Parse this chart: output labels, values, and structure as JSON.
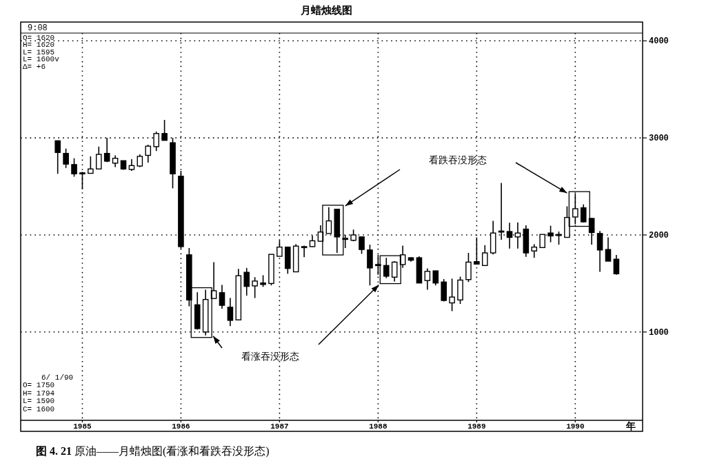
{
  "chart_data": {
    "type": "candlestick",
    "title": "月蜡烛线图",
    "xlabel": "年",
    "x": [
      "1984-10",
      "1984-11",
      "1984-12",
      "1985-01",
      "1985-02",
      "1985-03",
      "1985-04",
      "1985-05",
      "1985-06",
      "1985-07",
      "1985-08",
      "1985-09",
      "1985-10",
      "1985-11",
      "1985-12",
      "1986-01",
      "1986-02",
      "1986-03",
      "1986-04",
      "1986-05",
      "1986-06",
      "1986-07",
      "1986-08",
      "1986-09",
      "1986-10",
      "1986-11",
      "1986-12",
      "1987-01",
      "1987-02",
      "1987-03",
      "1987-04",
      "1987-05",
      "1987-06",
      "1987-07",
      "1987-08",
      "1987-09",
      "1987-10",
      "1987-11",
      "1987-12",
      "1988-01",
      "1988-02",
      "1988-03",
      "1988-04",
      "1988-05",
      "1988-06",
      "1988-07",
      "1988-08",
      "1988-09",
      "1988-10",
      "1988-11",
      "1988-12",
      "1989-01",
      "1989-02",
      "1989-03",
      "1989-04",
      "1989-05",
      "1989-06",
      "1989-07",
      "1989-08",
      "1989-09",
      "1989-10",
      "1989-11",
      "1989-12",
      "1990-01",
      "1990-02",
      "1990-03",
      "1990-04",
      "1990-05",
      "1990-06"
    ],
    "ohlc": [
      [
        2970,
        2975,
        2630,
        2850
      ],
      [
        2840,
        2890,
        2690,
        2730
      ],
      [
        2725,
        2790,
        2600,
        2630
      ],
      [
        2640,
        2650,
        2470,
        2635
      ],
      [
        2635,
        2810,
        2635,
        2680
      ],
      [
        2680,
        2910,
        2680,
        2830
      ],
      [
        2840,
        3000,
        2750,
        2760
      ],
      [
        2740,
        2820,
        2700,
        2790
      ],
      [
        2765,
        2765,
        2670,
        2680
      ],
      [
        2675,
        2780,
        2660,
        2715
      ],
      [
        2710,
        2830,
        2700,
        2810
      ],
      [
        2820,
        2930,
        2745,
        2915
      ],
      [
        2910,
        3065,
        2865,
        3045
      ],
      [
        3045,
        3185,
        2975,
        2975
      ],
      [
        2950,
        3000,
        2480,
        2630
      ],
      [
        2605,
        2660,
        1860,
        1880
      ],
      [
        1795,
        1865,
        1265,
        1330
      ],
      [
        1280,
        1410,
        1025,
        1035
      ],
      [
        1000,
        1435,
        965,
        1335
      ],
      [
        1345,
        1720,
        1345,
        1425
      ],
      [
        1405,
        1485,
        1240,
        1275
      ],
      [
        1255,
        1350,
        1060,
        1120
      ],
      [
        1125,
        1650,
        1125,
        1580
      ],
      [
        1615,
        1660,
        1375,
        1470
      ],
      [
        1475,
        1565,
        1350,
        1525
      ],
      [
        1505,
        1585,
        1465,
        1490
      ],
      [
        1500,
        1800,
        1480,
        1800
      ],
      [
        1780,
        1945,
        1780,
        1875
      ],
      [
        1875,
        1875,
        1600,
        1655
      ],
      [
        1620,
        1905,
        1620,
        1885
      ],
      [
        1870,
        1890,
        1770,
        1880
      ],
      [
        1880,
        1995,
        1875,
        1940
      ],
      [
        1935,
        2100,
        1935,
        2030
      ],
      [
        2015,
        2285,
        2015,
        2145
      ],
      [
        2265,
        2265,
        1815,
        1980
      ],
      [
        1960,
        2000,
        1865,
        1965
      ],
      [
        1945,
        2055,
        1935,
        2000
      ],
      [
        1980,
        1980,
        1805,
        1850
      ],
      [
        1845,
        1900,
        1480,
        1660
      ],
      [
        1695,
        1795,
        1590,
        1690
      ],
      [
        1685,
        1765,
        1555,
        1575
      ],
      [
        1565,
        1730,
        1520,
        1720
      ],
      [
        1695,
        1890,
        1660,
        1795
      ],
      [
        1765,
        1770,
        1725,
        1740
      ],
      [
        1765,
        1780,
        1505,
        1505
      ],
      [
        1530,
        1655,
        1435,
        1625
      ],
      [
        1630,
        1630,
        1480,
        1505
      ],
      [
        1515,
        1545,
        1315,
        1325
      ],
      [
        1300,
        1550,
        1215,
        1360
      ],
      [
        1330,
        1570,
        1290,
        1535
      ],
      [
        1540,
        1815,
        1515,
        1720
      ],
      [
        1725,
        1975,
        1700,
        1700
      ],
      [
        1685,
        1895,
        1685,
        1815
      ],
      [
        1815,
        2145,
        1800,
        2020
      ],
      [
        2030,
        2535,
        1950,
        2040
      ],
      [
        2035,
        2125,
        1860,
        1975
      ],
      [
        1980,
        2130,
        1860,
        2020
      ],
      [
        2060,
        2100,
        1775,
        1815
      ],
      [
        1835,
        1905,
        1765,
        1875
      ],
      [
        1870,
        2005,
        1870,
        2005
      ],
      [
        2020,
        2095,
        1925,
        1990
      ],
      [
        2005,
        2035,
        1900,
        1995
      ],
      [
        1975,
        2295,
        1975,
        2180
      ],
      [
        2185,
        2425,
        2110,
        2270
      ],
      [
        2280,
        2315,
        2130,
        2135
      ],
      [
        2170,
        2175,
        1900,
        2025
      ],
      [
        2015,
        2040,
        1620,
        1845
      ],
      [
        1850,
        1975,
        1730,
        1730
      ],
      [
        1750,
        1794,
        1590,
        1600
      ]
    ],
    "xlim": [
      "1984-05-16",
      "1990-09-07"
    ],
    "ylim": [
      90,
      4080
    ],
    "xticks": [
      {
        "value": "1985-01",
        "label": "1985"
      },
      {
        "value": "1986-01",
        "label": "1986"
      },
      {
        "value": "1987-01",
        "label": "1987"
      },
      {
        "value": "1988-01",
        "label": "1988"
      },
      {
        "value": "1989-01",
        "label": "1989"
      },
      {
        "value": "1990-01",
        "label": "1990"
      }
    ],
    "yticks": [
      1000,
      2000,
      3000,
      4000
    ],
    "grid": true,
    "annotations": [
      "9:08",
      "O= 1620",
      "H= 1620",
      "L= 1595",
      "L= 1600v",
      "Δ=    +6",
      "6/ 1/90",
      "O= 1750",
      "H= 1794",
      "L= 1590",
      "C= 1600",
      "看跌吞没形态",
      "看涨吞没形态",
      "**图 4. 21**   原油——月蜡烛图(看涨和看跌吞没形态)"
    ]
  }
}
